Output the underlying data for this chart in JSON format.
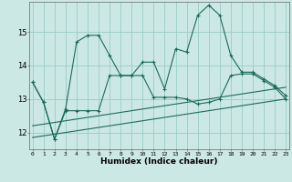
{
  "xlabel": "Humidex (Indice chaleur)",
  "bg_color": "#cce8e4",
  "grid_color": "#99ccc5",
  "line_color": "#1a6b5a",
  "x_ticks": [
    0,
    1,
    2,
    3,
    4,
    5,
    6,
    7,
    8,
    9,
    10,
    11,
    12,
    13,
    14,
    15,
    16,
    17,
    18,
    19,
    20,
    21,
    22,
    23
  ],
  "y_ticks": [
    12,
    13,
    14,
    15
  ],
  "ylim": [
    11.5,
    15.9
  ],
  "xlim": [
    -0.3,
    23.3
  ],
  "line1_x": [
    0,
    1,
    2,
    3,
    4,
    5,
    6,
    7,
    8,
    9,
    10,
    11,
    12,
    13,
    14,
    15,
    16,
    17,
    18,
    19,
    20,
    21,
    22,
    23
  ],
  "line1_y": [
    13.5,
    12.9,
    11.8,
    12.7,
    14.7,
    14.9,
    14.9,
    14.3,
    13.7,
    13.7,
    14.1,
    14.1,
    13.3,
    14.5,
    14.4,
    15.5,
    15.8,
    15.5,
    14.3,
    13.8,
    13.8,
    13.6,
    13.4,
    13.1
  ],
  "line2_x": [
    0,
    1,
    2,
    3,
    4,
    5,
    6,
    7,
    8,
    9,
    10,
    11,
    12,
    13,
    14,
    15,
    16,
    17,
    18,
    19,
    20,
    21,
    22,
    23
  ],
  "line2_y": [
    13.5,
    12.9,
    11.8,
    12.65,
    12.65,
    12.65,
    12.65,
    13.7,
    13.7,
    13.7,
    13.7,
    13.05,
    13.05,
    13.05,
    13.0,
    12.85,
    12.9,
    13.0,
    13.7,
    13.75,
    13.75,
    13.55,
    13.35,
    13.0
  ],
  "line3_x": [
    0,
    23
  ],
  "line3_y": [
    11.85,
    13.0
  ],
  "line4_x": [
    0,
    23
  ],
  "line4_y": [
    12.2,
    13.35
  ]
}
